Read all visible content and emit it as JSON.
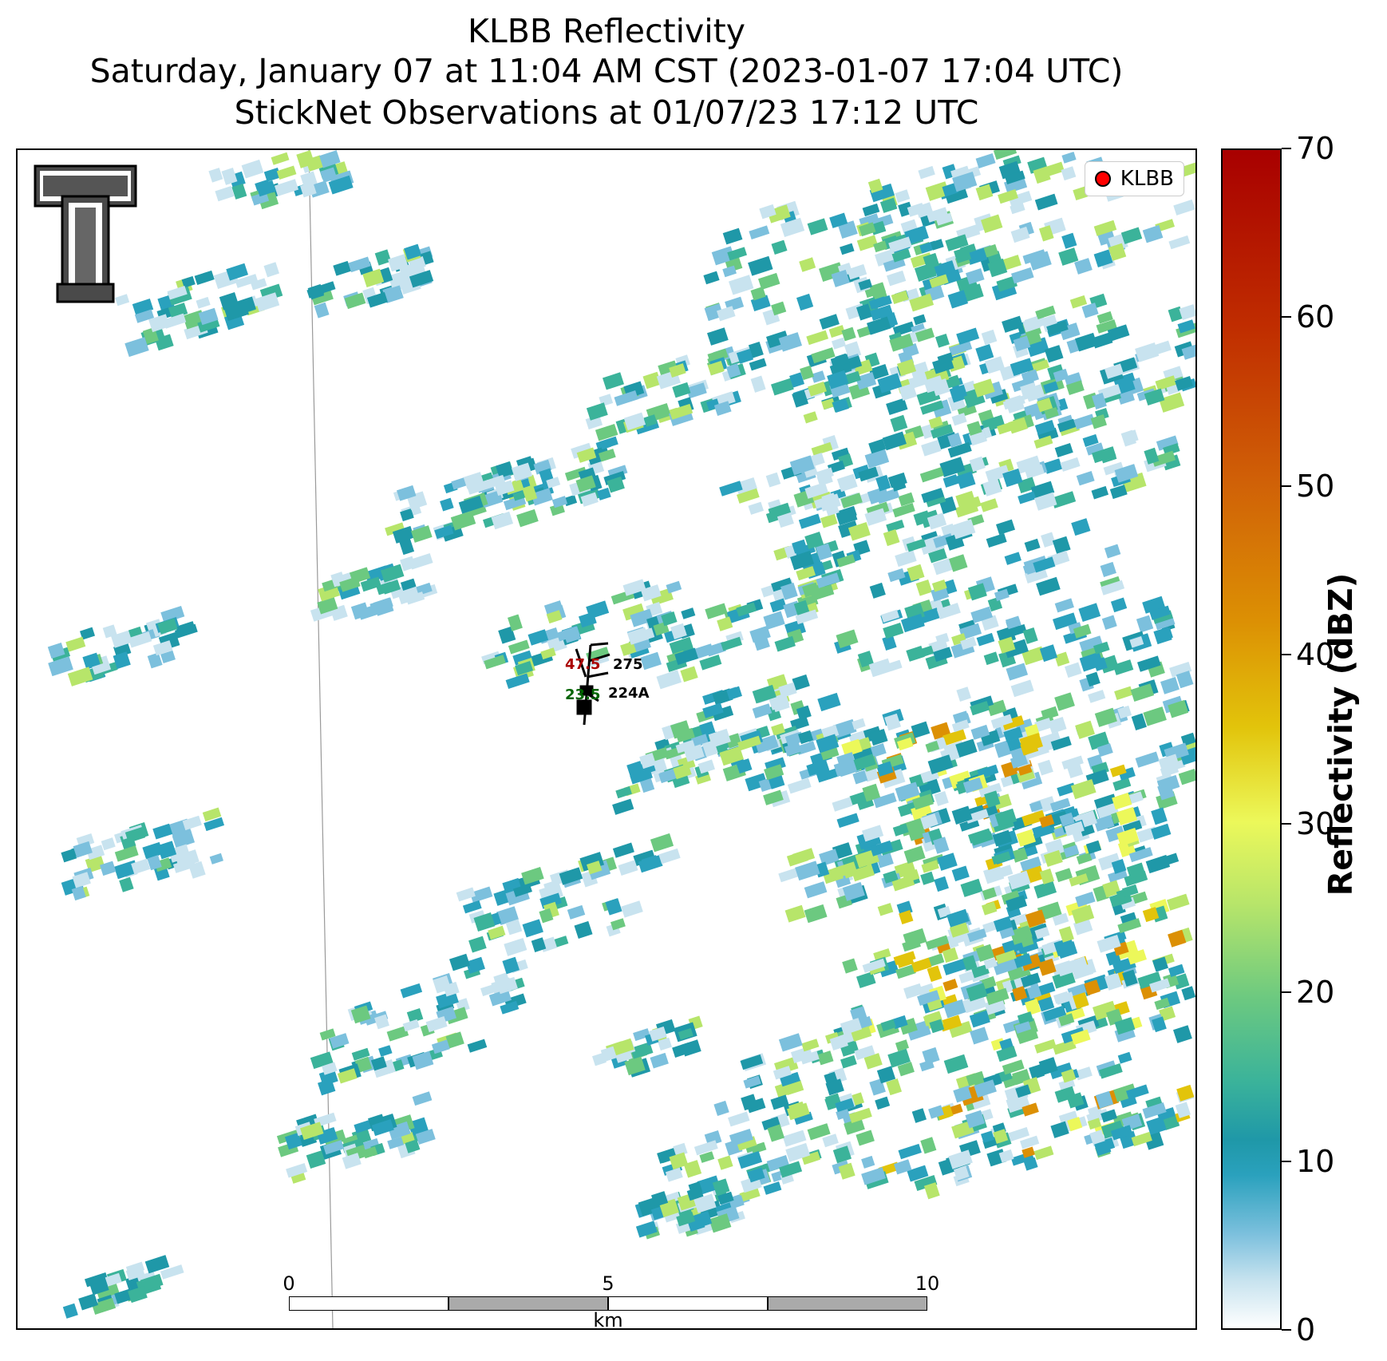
{
  "title": {
    "line1": "KLBB Reflectivity",
    "line2": "Saturday, January 07 at 11:04 AM CST (2023-01-07 17:04 UTC)",
    "line3": "StickNet Observations at 01/07/23 17:12 UTC"
  },
  "legend": {
    "label": "KLBB",
    "marker_color": "#ff0000"
  },
  "logo": {
    "name": "texas-tech-double-t-logo"
  },
  "stations": [
    {
      "id": "275",
      "temperature": "47.5",
      "dewpoint": "",
      "temp_color": "#aa0000"
    },
    {
      "id": "224A",
      "temperature": "",
      "dewpoint": "23.5",
      "dew_color": "#006400"
    }
  ],
  "scalebar": {
    "labels": [
      "0",
      "5",
      "10"
    ],
    "unit": "km"
  },
  "colorbar": {
    "label": "Reflectivity (dBZ)",
    "ticks": [
      "0",
      "10",
      "20",
      "30",
      "40",
      "50",
      "60",
      "70"
    ],
    "min": 0,
    "max": 70
  },
  "palette": [
    "#c8e3ef",
    "#7cc0dd",
    "#2aa1bd",
    "#1f98a8",
    "#3bb39a",
    "#6cc980",
    "#b7e56a",
    "#ecf85a",
    "#e2c40b",
    "#dc9004"
  ]
}
